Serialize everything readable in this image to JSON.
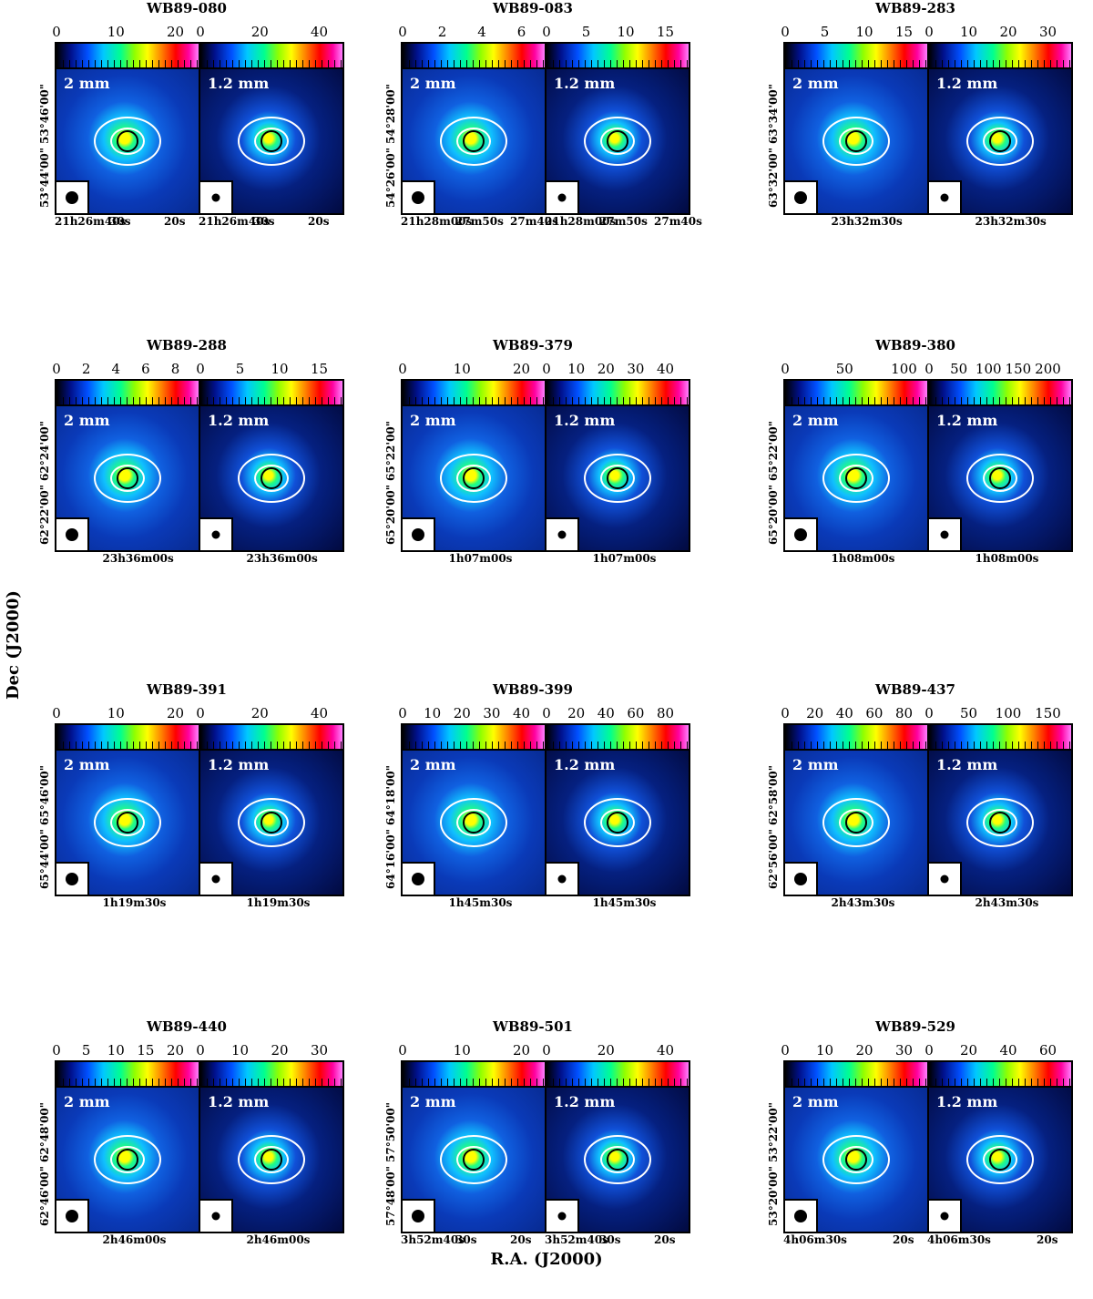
{
  "axis_labels": {
    "x": "R.A. (J2000)",
    "y": "Dec (J2000)"
  },
  "wavelengths": {
    "short": "2 mm",
    "long": "1.2 mm"
  },
  "groups": [
    {
      "title": "WB89-080",
      "cb2": [
        "0",
        "10",
        "20"
      ],
      "cb12": [
        "0",
        "20",
        "40"
      ],
      "dec": [
        "53°46'00\"",
        "53°44'00\""
      ],
      "ra2": [
        "21h26m40s",
        "30s",
        "20s"
      ],
      "ra12": [
        "21h26m40s",
        "30s",
        "20s"
      ]
    },
    {
      "title": "WB89-083",
      "cb2": [
        "0",
        "2",
        "4",
        "6"
      ],
      "cb12": [
        "0",
        "5",
        "10",
        "15"
      ],
      "dec": [
        "54°28'00\"",
        "54°26'00\""
      ],
      "ra2": [
        "21h28m00s",
        "27m50s",
        "27m40s"
      ],
      "ra12": [
        "21h28m00s",
        "27m50s",
        "27m40s"
      ]
    },
    {
      "title": "WB89-283",
      "cb2": [
        "0",
        "5",
        "10",
        "15"
      ],
      "cb12": [
        "0",
        "10",
        "20",
        "30"
      ],
      "dec": [
        "63°34'00\"",
        "63°32'00\""
      ],
      "ra2": [
        "23h32m30s"
      ],
      "ra12": [
        "23h32m30s"
      ]
    },
    {
      "title": "WB89-288",
      "cb2": [
        "0",
        "2",
        "4",
        "6",
        "8"
      ],
      "cb12": [
        "0",
        "5",
        "10",
        "15"
      ],
      "dec": [
        "62°24'00\"",
        "62°22'00\""
      ],
      "ra2": [
        "23h36m00s"
      ],
      "ra12": [
        "23h36m00s"
      ]
    },
    {
      "title": "WB89-379",
      "cb2": [
        "0",
        "10",
        "20"
      ],
      "cb12": [
        "0",
        "10",
        "20",
        "30",
        "40"
      ],
      "dec": [
        "65°22'00\"",
        "65°20'00\""
      ],
      "ra2": [
        "1h07m00s"
      ],
      "ra12": [
        "1h07m00s"
      ]
    },
    {
      "title": "WB89-380",
      "cb2": [
        "0",
        "50",
        "100"
      ],
      "cb12": [
        "0",
        "50",
        "100",
        "150",
        "200"
      ],
      "dec": [
        "65°22'00\"",
        "65°20'00\""
      ],
      "ra2": [
        "1h08m00s"
      ],
      "ra12": [
        "1h08m00s"
      ]
    },
    {
      "title": "WB89-391",
      "cb2": [
        "0",
        "10",
        "20"
      ],
      "cb12": [
        "0",
        "20",
        "40"
      ],
      "dec": [
        "65°46'00\"",
        "65°44'00\""
      ],
      "ra2": [
        "1h19m30s"
      ],
      "ra12": [
        "1h19m30s"
      ]
    },
    {
      "title": "WB89-399",
      "cb2": [
        "0",
        "10",
        "20",
        "30",
        "40"
      ],
      "cb12": [
        "0",
        "20",
        "40",
        "60",
        "80"
      ],
      "dec": [
        "64°18'00\"",
        "64°16'00\""
      ],
      "ra2": [
        "1h45m30s"
      ],
      "ra12": [
        "1h45m30s"
      ]
    },
    {
      "title": "WB89-437",
      "cb2": [
        "0",
        "20",
        "40",
        "60",
        "80"
      ],
      "cb12": [
        "0",
        "50",
        "100",
        "150"
      ],
      "dec": [
        "62°58'00\"",
        "62°56'00\""
      ],
      "ra2": [
        "2h43m30s"
      ],
      "ra12": [
        "2h43m30s"
      ]
    },
    {
      "title": "WB89-440",
      "cb2": [
        "0",
        "5",
        "10",
        "15",
        "20"
      ],
      "cb12": [
        "0",
        "10",
        "20",
        "30"
      ],
      "dec": [
        "62°48'00\"",
        "62°46'00\""
      ],
      "ra2": [
        "2h46m00s"
      ],
      "ra12": [
        "2h46m00s"
      ]
    },
    {
      "title": "WB89-501",
      "cb2": [
        "0",
        "10",
        "20"
      ],
      "cb12": [
        "0",
        "20",
        "40"
      ],
      "dec": [
        "57°50'00\"",
        "57°48'00\""
      ],
      "ra2": [
        "3h52m40s",
        "30s",
        "20s"
      ],
      "ra12": [
        "3h52m40s",
        "30s",
        "20s"
      ]
    },
    {
      "title": "WB89-529",
      "cb2": [
        "0",
        "10",
        "20",
        "30"
      ],
      "cb12": [
        "0",
        "20",
        "40",
        "60"
      ],
      "dec": [
        "53°22'00\"",
        "53°20'00\""
      ],
      "ra2": [
        "4h06m30s",
        "20s"
      ],
      "ra12": [
        "4h06m30s",
        "20s"
      ]
    }
  ]
}
